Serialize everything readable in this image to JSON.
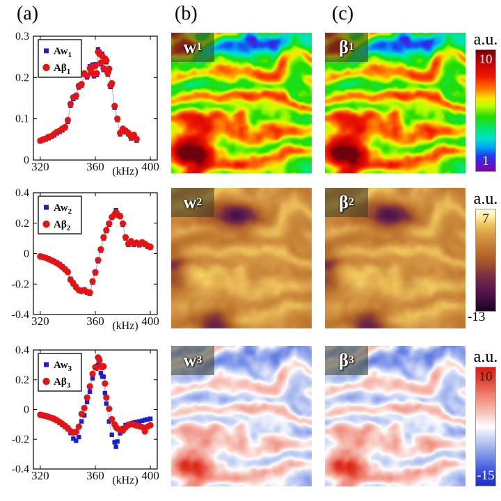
{
  "panel_labels": {
    "a": "(a)",
    "b": "(b)",
    "c": "(c)"
  },
  "images": [
    {
      "label_main": "w",
      "label_sub": "1",
      "colormap": "rainbow"
    },
    {
      "label_main": "β",
      "label_sub": "1",
      "colormap": "rainbow"
    },
    {
      "label_main": "w",
      "label_sub": "2",
      "colormap": "gold"
    },
    {
      "label_main": "β",
      "label_sub": "2",
      "colormap": "gold"
    },
    {
      "label_main": "w",
      "label_sub": "3",
      "colormap": "red-white-blue"
    },
    {
      "label_main": "β",
      "label_sub": "3",
      "colormap": "red-white-blue"
    }
  ],
  "colorbars": [
    {
      "title": "a.u.",
      "max": "10",
      "min": "1",
      "colormap": "rainbow",
      "stops": [
        {
          "p": 0.0,
          "c": "#8a00a8"
        },
        {
          "p": 0.07,
          "c": "#5018d8"
        },
        {
          "p": 0.13,
          "c": "#2040f0"
        },
        {
          "p": 0.2,
          "c": "#00a8f0"
        },
        {
          "p": 0.27,
          "c": "#00e0d0"
        },
        {
          "p": 0.34,
          "c": "#00e87a"
        },
        {
          "p": 0.45,
          "c": "#22dd00"
        },
        {
          "p": 0.54,
          "c": "#baff00"
        },
        {
          "p": 0.6,
          "c": "#ffe400"
        },
        {
          "p": 0.68,
          "c": "#ff7a00"
        },
        {
          "p": 0.78,
          "c": "#f01800"
        },
        {
          "p": 0.9,
          "c": "#c40000"
        },
        {
          "p": 1.0,
          "c": "#6e000e"
        }
      ]
    },
    {
      "title": "a.u.",
      "max": "7",
      "min": "-13",
      "colormap": "gold",
      "stops": [
        {
          "p": 0.0,
          "c": "#1c0422"
        },
        {
          "p": 0.2,
          "c": "#55164e"
        },
        {
          "p": 0.35,
          "c": "#7c3040"
        },
        {
          "p": 0.5,
          "c": "#a85a28"
        },
        {
          "p": 0.62,
          "c": "#c07830"
        },
        {
          "p": 0.75,
          "c": "#d89c48"
        },
        {
          "p": 0.85,
          "c": "#eec45a"
        },
        {
          "p": 0.93,
          "c": "#ffeda0"
        },
        {
          "p": 1.0,
          "c": "#fdf8d8"
        }
      ]
    },
    {
      "title": "a.u.",
      "max": "10",
      "min": "-15",
      "colormap": "red-white-blue",
      "stops": [
        {
          "p": 0.0,
          "c": "#1830d0"
        },
        {
          "p": 0.1,
          "c": "#3048d8"
        },
        {
          "p": 0.25,
          "c": "#7890e8"
        },
        {
          "p": 0.4,
          "c": "#c8d4f4"
        },
        {
          "p": 0.5,
          "c": "#ffffff"
        },
        {
          "p": 0.6,
          "c": "#f8ccc4"
        },
        {
          "p": 0.75,
          "c": "#f08878"
        },
        {
          "p": 0.9,
          "c": "#e04030"
        },
        {
          "p": 1.0,
          "c": "#dc1c10"
        }
      ]
    }
  ],
  "chart_data": [
    {
      "type": "scatter",
      "title": "",
      "xlabel": "(kHz)",
      "ylabel": "",
      "xlim": [
        315,
        405
      ],
      "ylim": [
        0,
        0.3
      ],
      "xticks": [
        320,
        360,
        400
      ],
      "xtick_labels": [
        "320",
        "360",
        "400"
      ],
      "yticks": [
        0,
        0.1,
        0.2,
        0.3
      ],
      "ytick_labels": [
        "0",
        "0.1",
        "0.2",
        "0.3"
      ],
      "grid": false,
      "legend_pos": "top-left",
      "x": [
        320,
        322,
        324,
        326,
        328,
        330,
        332,
        334,
        336,
        338,
        340,
        342,
        344,
        346,
        348,
        350,
        352,
        354,
        356,
        357,
        358,
        359,
        360,
        361,
        362,
        363,
        364,
        365,
        366,
        367,
        368,
        369,
        370,
        371,
        372,
        374,
        376,
        378,
        380,
        382,
        384,
        386,
        388,
        390
      ],
      "series": [
        {
          "name": "Aw",
          "sub": "1",
          "marker": "square",
          "color": "#1c1cd0",
          "y": [
            0.045,
            0.048,
            0.05,
            0.053,
            0.056,
            0.06,
            0.065,
            0.068,
            0.072,
            0.077,
            0.093,
            0.132,
            0.148,
            0.152,
            0.176,
            0.18,
            0.207,
            0.2,
            0.227,
            0.21,
            0.231,
            0.203,
            0.232,
            0.206,
            0.268,
            0.262,
            0.232,
            0.257,
            0.218,
            0.242,
            0.237,
            0.207,
            0.217,
            0.177,
            0.182,
            0.127,
            0.097,
            0.062,
            0.072,
            0.067,
            0.062,
            0.052,
            0.057,
            0.047
          ]
        },
        {
          "name": "Aβ",
          "sub": "1",
          "marker": "circle",
          "color": "#e41414",
          "y": [
            0.047,
            0.05,
            0.052,
            0.056,
            0.058,
            0.063,
            0.068,
            0.071,
            0.076,
            0.08,
            0.097,
            0.136,
            0.152,
            0.156,
            0.18,
            0.184,
            0.21,
            0.204,
            0.222,
            0.214,
            0.226,
            0.207,
            0.228,
            0.21,
            0.262,
            0.257,
            0.236,
            0.252,
            0.222,
            0.246,
            0.241,
            0.211,
            0.221,
            0.181,
            0.186,
            0.131,
            0.1,
            0.066,
            0.076,
            0.071,
            0.066,
            0.056,
            0.061,
            0.051
          ]
        }
      ]
    },
    {
      "type": "scatter",
      "title": "",
      "xlabel": "(kHz)",
      "ylabel": "",
      "xlim": [
        315,
        405
      ],
      "ylim": [
        -0.4,
        0.4
      ],
      "xticks": [
        320,
        360,
        400
      ],
      "xtick_labels": [
        "320",
        "360",
        "400"
      ],
      "yticks": [
        -0.4,
        -0.2,
        0,
        0.2,
        0.4
      ],
      "ytick_labels": [
        "-0.4",
        "-0.2",
        "0",
        "0.2",
        "0.4"
      ],
      "grid": false,
      "legend_pos": "top-left",
      "x": [
        320,
        322,
        324,
        326,
        328,
        330,
        332,
        334,
        336,
        338,
        340,
        342,
        344,
        346,
        348,
        350,
        352,
        354,
        356,
        358,
        360,
        362,
        364,
        366,
        368,
        370,
        372,
        374,
        375,
        376,
        378,
        380,
        382,
        384,
        386,
        388,
        390,
        392,
        394,
        396,
        398,
        400
      ],
      "series": [
        {
          "name": "Aw",
          "sub": "2",
          "marker": "square",
          "color": "#1c1cd0",
          "y": [
            -0.015,
            -0.02,
            -0.025,
            -0.032,
            -0.04,
            -0.048,
            -0.058,
            -0.068,
            -0.082,
            -0.098,
            -0.115,
            -0.165,
            -0.19,
            -0.215,
            -0.235,
            -0.24,
            -0.235,
            -0.258,
            -0.262,
            -0.19,
            -0.13,
            -0.05,
            0.02,
            0.1,
            0.148,
            0.19,
            0.235,
            0.252,
            0.285,
            0.262,
            0.252,
            0.19,
            0.1,
            0.058,
            0.075,
            0.058,
            0.065,
            0.055,
            0.068,
            0.058,
            0.045,
            0.038
          ]
        },
        {
          "name": "Aβ",
          "sub": "2",
          "marker": "circle",
          "color": "#e41414",
          "y": [
            -0.018,
            -0.023,
            -0.028,
            -0.036,
            -0.044,
            -0.052,
            -0.062,
            -0.073,
            -0.088,
            -0.104,
            -0.122,
            -0.172,
            -0.198,
            -0.222,
            -0.24,
            -0.246,
            -0.24,
            -0.252,
            -0.255,
            -0.182,
            -0.122,
            -0.042,
            0.028,
            0.108,
            0.155,
            0.198,
            0.24,
            0.258,
            0.272,
            0.255,
            0.245,
            0.198,
            0.108,
            0.065,
            0.082,
            0.065,
            0.072,
            0.062,
            0.075,
            0.065,
            0.052,
            0.045
          ]
        }
      ]
    },
    {
      "type": "scatter",
      "title": "",
      "xlabel": "(kHz)",
      "ylabel": "",
      "xlim": [
        315,
        405
      ],
      "ylim": [
        -0.4,
        0.4
      ],
      "xticks": [
        320,
        360,
        400
      ],
      "xtick_labels": [
        "320",
        "360",
        "400"
      ],
      "yticks": [
        -0.4,
        -0.2,
        0,
        0.2,
        0.4
      ],
      "ytick_labels": [
        "-0.4",
        "-0.2",
        "0",
        "0.2",
        "0.4"
      ],
      "grid": false,
      "legend_pos": "top-left",
      "x": [
        320,
        322,
        324,
        326,
        328,
        330,
        332,
        334,
        336,
        338,
        340,
        342,
        344,
        346,
        348,
        350,
        352,
        354,
        356,
        358,
        360,
        361,
        362,
        363,
        364,
        365,
        366,
        367,
        368,
        370,
        372,
        374,
        375,
        376,
        378,
        380,
        382,
        384,
        386,
        388,
        390,
        392,
        394,
        396,
        398,
        400
      ],
      "series": [
        {
          "name": "Aw",
          "sub": "3",
          "marker": "square",
          "color": "#1c1cd0",
          "y": [
            -0.04,
            -0.044,
            -0.048,
            -0.054,
            -0.06,
            -0.068,
            -0.078,
            -0.09,
            -0.104,
            -0.118,
            -0.133,
            -0.158,
            -0.196,
            -0.21,
            -0.185,
            -0.08,
            -0.04,
            0.05,
            0.12,
            0.21,
            0.28,
            0.292,
            0.3,
            0.338,
            0.245,
            0.222,
            0.22,
            0.11,
            0.04,
            -0.08,
            -0.17,
            -0.22,
            -0.25,
            -0.215,
            -0.16,
            -0.125,
            -0.105,
            -0.098,
            -0.092,
            -0.088,
            -0.084,
            -0.08,
            -0.076,
            -0.07,
            -0.066,
            -0.062
          ]
        },
        {
          "name": "Aβ",
          "sub": "3",
          "marker": "circle",
          "color": "#e41414",
          "y": [
            -0.035,
            -0.039,
            -0.043,
            -0.049,
            -0.055,
            -0.062,
            -0.072,
            -0.083,
            -0.096,
            -0.11,
            -0.125,
            -0.145,
            -0.155,
            -0.15,
            -0.115,
            -0.03,
            0.01,
            0.08,
            0.155,
            0.24,
            0.285,
            0.28,
            0.35,
            0.33,
            0.29,
            0.285,
            0.29,
            0.175,
            0.08,
            0.005,
            -0.065,
            -0.1,
            -0.118,
            -0.128,
            -0.138,
            -0.142,
            -0.12,
            -0.105,
            -0.098,
            -0.102,
            -0.108,
            -0.112,
            -0.118,
            -0.148,
            -0.115,
            -0.105
          ]
        }
      ]
    }
  ]
}
